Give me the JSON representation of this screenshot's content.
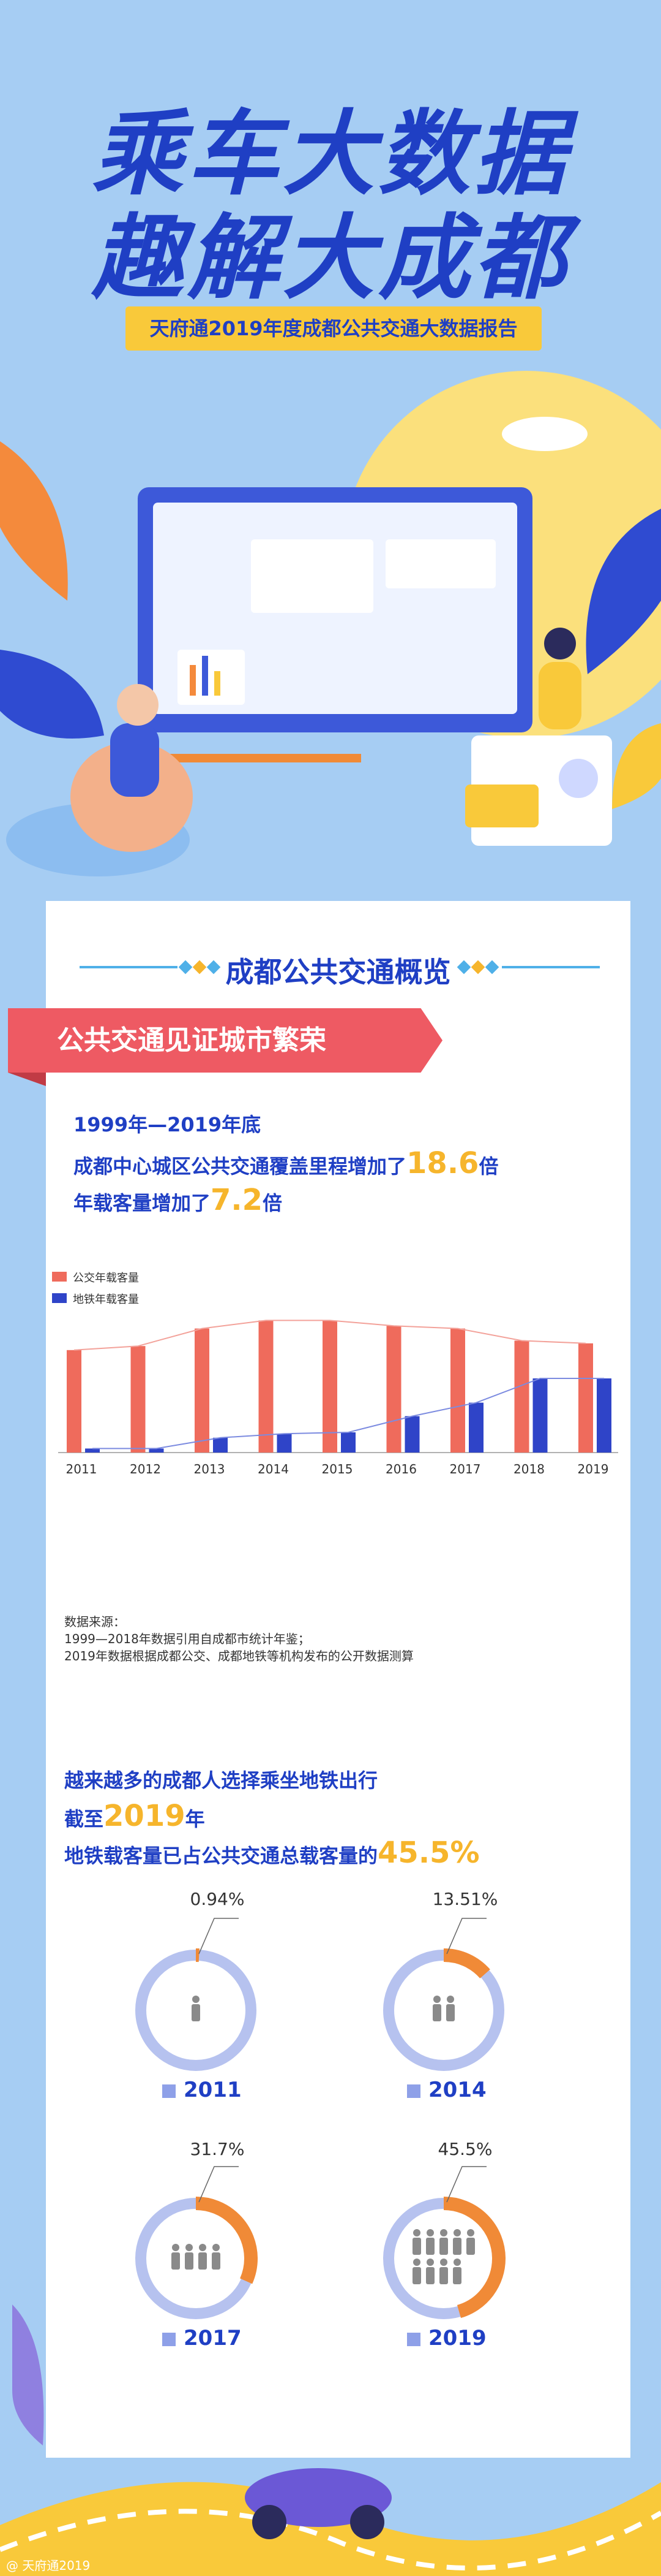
{
  "header": {
    "title_line1": "乘车大数据",
    "title_line2": "趣解大成都",
    "subtitle": "天府通2019年度成都公共交通大数据报告"
  },
  "section": {
    "title": "成都公共交通概览",
    "banner": "公共交通见证城市繁荣"
  },
  "intro": {
    "line1": "1999年—2019年底",
    "line2_prefix": "成都中心城区公共交通覆盖里程增加了",
    "line2_value": "18.6",
    "line2_suffix": "倍",
    "line3_prefix": "年载客量增加了",
    "line3_value": "7.2",
    "line3_suffix": "倍"
  },
  "chart_data": [
    {
      "type": "bar",
      "categories": [
        "2011",
        "2012",
        "2013",
        "2014",
        "2015",
        "2016",
        "2017",
        "2018",
        "2019"
      ],
      "series": [
        {
          "name": "公交年载客量",
          "values": [
            76,
            79,
            92,
            98,
            98,
            94,
            92,
            83,
            81
          ],
          "color": "#ef6b5c"
        },
        {
          "name": "地铁年载客量",
          "values": [
            3,
            3,
            11,
            14,
            15,
            27,
            37,
            55,
            55
          ],
          "color": "#2f44c8"
        }
      ],
      "ylim": [
        0,
        100
      ],
      "notes": {
        "title": "数据来源：",
        "line1": "1999—2018年数据引用自成都市统计年鉴；",
        "line2": "2019年数据根据成都公交、成都地铁等机构发布的公开数据测算"
      }
    },
    {
      "type": "pie",
      "title_line1": "越来越多的成都人选择乘坐地铁出行",
      "title_line2_prefix": "截至",
      "title_line2_year": "2019",
      "title_line2_suffix": "年",
      "title_line3_prefix": "地铁载客量已占公共交通总载客量的",
      "title_line3_value": "45.5%",
      "donuts": [
        {
          "year": "2011",
          "label": "0.94%",
          "value": 0.94,
          "people": 1
        },
        {
          "year": "2014",
          "label": "13.51%",
          "value": 13.51,
          "people": 2
        },
        {
          "year": "2017",
          "label": "31.7%",
          "value": 31.7,
          "people": 4
        },
        {
          "year": "2019",
          "label": "45.5%",
          "value": 45.5,
          "people": 9
        }
      ]
    }
  ],
  "colors": {
    "bus": "#ef6b5c",
    "metro": "#2f44c8",
    "accent": "#f6b52c",
    "primary": "#1f3fc4",
    "donut_bg": "#b6c2ef",
    "donut_fg": "#f08a37"
  },
  "footer": {
    "watermark": "@ 天府通2019"
  }
}
